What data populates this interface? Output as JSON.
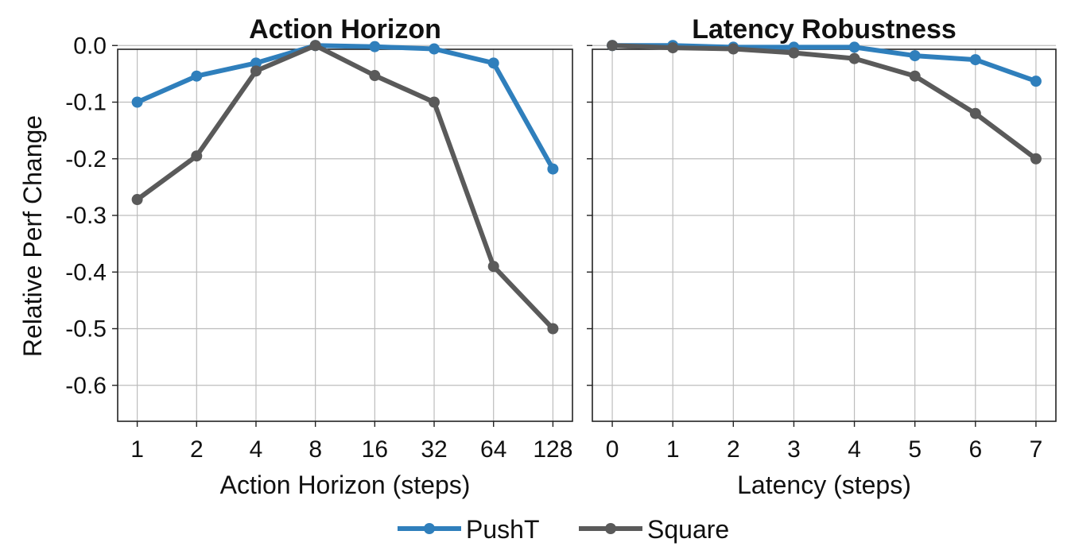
{
  "chart_data": [
    {
      "type": "line",
      "title": "Action Horizon",
      "xlabel": "Action Horizon (steps)",
      "ylabel": "Relative Perf Change",
      "x_scale": "log2",
      "x": [
        "1",
        "2",
        "4",
        "8",
        "16",
        "32",
        "64",
        "128"
      ],
      "ylim": [
        -0.62,
        0.02
      ],
      "yticks": [
        "0.0",
        "-0.1",
        "-0.2",
        "-0.3",
        "-0.4",
        "-0.5",
        "-0.6"
      ],
      "grid": true,
      "series": [
        {
          "name": "PushT",
          "color": "#2f7fbc",
          "values": [
            -0.1,
            -0.054,
            -0.031,
            0.0,
            -0.002,
            -0.006,
            -0.031,
            -0.218
          ]
        },
        {
          "name": "Square",
          "color": "#5a5a5a",
          "values": [
            -0.272,
            -0.195,
            -0.045,
            0.0,
            -0.053,
            -0.1,
            -0.39,
            -0.5
          ]
        }
      ]
    },
    {
      "type": "line",
      "title": "Latency Robustness",
      "xlabel": "Latency (steps)",
      "ylabel": "",
      "x": [
        "0",
        "1",
        "2",
        "3",
        "4",
        "5",
        "6",
        "7"
      ],
      "ylim": [
        -0.62,
        0.02
      ],
      "shared_y": true,
      "grid": true,
      "series": [
        {
          "name": "PushT",
          "color": "#2f7fbc",
          "values": [
            0.0,
            0.0,
            -0.003,
            -0.003,
            -0.003,
            -0.018,
            -0.025,
            -0.063
          ]
        },
        {
          "name": "Square",
          "color": "#5a5a5a",
          "values": [
            0.0,
            -0.004,
            -0.006,
            -0.013,
            -0.023,
            -0.054,
            -0.12,
            -0.2
          ]
        }
      ]
    }
  ],
  "legend": {
    "placement": "bottom-center",
    "items": [
      {
        "label": "PushT",
        "color": "#2f7fbc"
      },
      {
        "label": "Square",
        "color": "#5a5a5a"
      }
    ]
  }
}
